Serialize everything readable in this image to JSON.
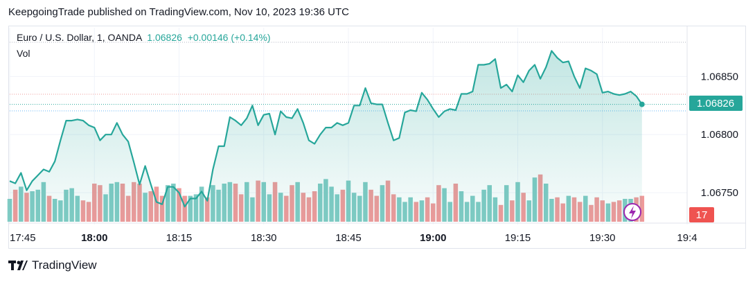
{
  "header": {
    "publisher_line": "KeepgoingTrade published on TradingView.com, Nov 10, 2023 19:36 UTC"
  },
  "legend": {
    "symbol": "Euro / U.S. Dollar, 1, OANDA",
    "last": "1.06826",
    "change": "+0.00146",
    "change_pct": "(+0.14%)",
    "volume_label": "Vol"
  },
  "price_badge": "1.06826",
  "volume_badge": "17",
  "footer": {
    "brand": "TradingView"
  },
  "colors": {
    "line": "#26a69a",
    "up_volume": "#80cbc4",
    "down_volume": "#ef9a9a",
    "badge_price": "#26a69a",
    "badge_volume": "#ef5350"
  },
  "chart_data": {
    "type": "line",
    "title": "Euro / U.S. Dollar, 1, OANDA",
    "x_ticks": [
      "17:45",
      "18:00",
      "18:15",
      "18:30",
      "18:45",
      "19:00",
      "19:15",
      "19:30",
      "19:4"
    ],
    "y_ticks": [
      "1.06850",
      "1.06800",
      "1.06750"
    ],
    "ylim": [
      1.06725,
      1.0688
    ],
    "series": [
      {
        "name": "EURUSD",
        "x_minutes": [
          0,
          1,
          2,
          3,
          4,
          5,
          6,
          7,
          8,
          9,
          10,
          11,
          12,
          13,
          14,
          15,
          16,
          17,
          18,
          19,
          20,
          21,
          22,
          23,
          24,
          25,
          26,
          27,
          28,
          29,
          30,
          31,
          32,
          33,
          34,
          35,
          36,
          37,
          38,
          39,
          40,
          41,
          42,
          43,
          44,
          45,
          46,
          47,
          48,
          49,
          50,
          51,
          52,
          53,
          54,
          55,
          56,
          57,
          58,
          59,
          60,
          61,
          62,
          63,
          64,
          65,
          66,
          67,
          68,
          69,
          70,
          71,
          72,
          73,
          74,
          75,
          76,
          77,
          78,
          79,
          80,
          81,
          82,
          83,
          84,
          85,
          86,
          87,
          88,
          89,
          90,
          91,
          92,
          93,
          94,
          95,
          96,
          97,
          98,
          99,
          100,
          101,
          102,
          103,
          104,
          105,
          106,
          107,
          108,
          109,
          110,
          111,
          112
        ],
        "values": [
          1.0676,
          1.06758,
          1.06767,
          1.06752,
          1.0676,
          1.06765,
          1.0677,
          1.06768,
          1.06777,
          1.06795,
          1.06812,
          1.06812,
          1.06813,
          1.06812,
          1.06808,
          1.06806,
          1.06795,
          1.068,
          1.068,
          1.0681,
          1.068,
          1.06794,
          1.06776,
          1.06757,
          1.06773,
          1.06757,
          1.06742,
          1.0674,
          1.06755,
          1.06755,
          1.0675,
          1.06738,
          1.06745,
          1.06745,
          1.06751,
          1.06743,
          1.0677,
          1.0679,
          1.0679,
          1.06815,
          1.06812,
          1.06808,
          1.06814,
          1.06825,
          1.06808,
          1.06817,
          1.06818,
          1.068,
          1.0682,
          1.06815,
          1.06814,
          1.06822,
          1.0681,
          1.06795,
          1.06792,
          1.068,
          1.06806,
          1.06806,
          1.0681,
          1.06808,
          1.0681,
          1.06825,
          1.06825,
          1.0684,
          1.06827,
          1.06826,
          1.06826,
          1.0681,
          1.06795,
          1.06797,
          1.06819,
          1.06821,
          1.0682,
          1.06836,
          1.0683,
          1.06822,
          1.06815,
          1.0682,
          1.06822,
          1.06821,
          1.06835,
          1.06835,
          1.06837,
          1.0686,
          1.0686,
          1.06861,
          1.06865,
          1.0684,
          1.06843,
          1.06837,
          1.06851,
          1.06845,
          1.06855,
          1.0686,
          1.06848,
          1.06858,
          1.06872,
          1.06866,
          1.06862,
          1.06863,
          1.0685,
          1.0684,
          1.06857,
          1.06855,
          1.06852,
          1.06836,
          1.06837,
          1.06835,
          1.06834,
          1.06835,
          1.06837,
          1.06833,
          1.06826
        ]
      },
      {
        "name": "Vol",
        "values": [
          15,
          21,
          23,
          19,
          20,
          21,
          26,
          17,
          15,
          14,
          21,
          22,
          17,
          14,
          13,
          25,
          24,
          18,
          25,
          26,
          25,
          17,
          26,
          25,
          19,
          20,
          23,
          17,
          24,
          25,
          22,
          17,
          17,
          18,
          23,
          16,
          24,
          21,
          25,
          26,
          25,
          18,
          26,
          16,
          27,
          26,
          18,
          26,
          19,
          17,
          24,
          26,
          19,
          16,
          20,
          25,
          28,
          23,
          18,
          21,
          27,
          19,
          17,
          26,
          21,
          17,
          24,
          27,
          18,
          16,
          13,
          16,
          13,
          14,
          16,
          12,
          24,
          22,
          13,
          25,
          20,
          13,
          17,
          13,
          21,
          24,
          16,
          11,
          24,
          14,
          26,
          19,
          14,
          29,
          31,
          25,
          15,
          16,
          12,
          17,
          16,
          13,
          17,
          11,
          16,
          14,
          12,
          13,
          14,
          15,
          15,
          16,
          17
        ]
      }
    ]
  }
}
